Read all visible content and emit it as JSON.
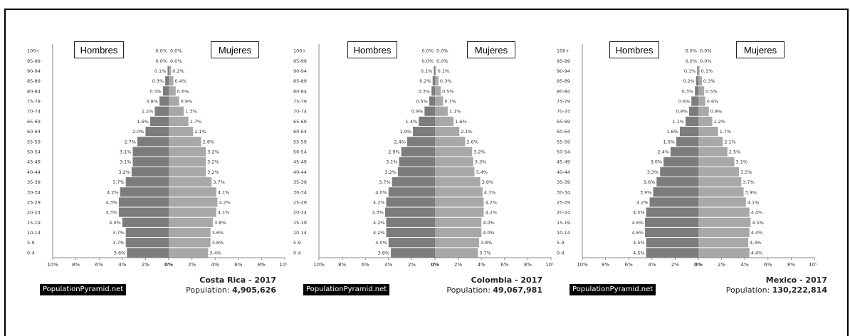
{
  "chart_data": [
    {
      "type": "bar",
      "age_groups": [
        "100+",
        "95-99",
        "90-94",
        "85-89",
        "80-84",
        "75-79",
        "70-74",
        "65-69",
        "60-64",
        "55-59",
        "50-54",
        "45-49",
        "40-44",
        "35-39",
        "30-34",
        "25-29",
        "20-24",
        "15-19",
        "10-14",
        "5-9",
        "0-4"
      ],
      "series": [
        {
          "name": "Hombres",
          "values": [
            0.0,
            0.0,
            0.1,
            0.3,
            0.5,
            0.8,
            1.2,
            1.6,
            2.0,
            2.7,
            3.1,
            3.1,
            3.2,
            3.7,
            4.2,
            4.3,
            4.3,
            4.0,
            3.7,
            3.7,
            3.6
          ]
        },
        {
          "name": "Mujeres",
          "values": [
            0.0,
            0.0,
            0.2,
            0.4,
            0.6,
            0.9,
            1.3,
            1.7,
            2.1,
            2.8,
            3.2,
            3.2,
            3.2,
            3.7,
            4.1,
            4.2,
            4.1,
            3.8,
            3.6,
            3.6,
            3.4
          ]
        }
      ],
      "xticks": [
        "10%",
        "8%",
        "6%",
        "4%",
        "2%",
        "0%",
        "2%",
        "4%",
        "6%",
        "8%",
        "10%"
      ],
      "xlim": [
        -10,
        10
      ],
      "title": "Costa Rica - 2017",
      "population_label": "Population:",
      "population_value": "4,905,626",
      "brand": "PopulationPyramid.net",
      "legend_male": "Hombres",
      "legend_female": "Mujeres"
    },
    {
      "type": "bar",
      "age_groups": [
        "100+",
        "95-99",
        "90-94",
        "85-89",
        "80-84",
        "75-79",
        "70-74",
        "65-69",
        "60-64",
        "55-59",
        "50-54",
        "45-49",
        "40-44",
        "35-39",
        "30-34",
        "25-29",
        "20-24",
        "15-19",
        "10-14",
        "5-9",
        "0-4"
      ],
      "series": [
        {
          "name": "Hombres",
          "values": [
            0.0,
            0.0,
            0.1,
            0.2,
            0.3,
            0.5,
            0.9,
            1.4,
            1.9,
            2.4,
            2.9,
            3.1,
            3.2,
            3.7,
            4.0,
            4.2,
            4.3,
            4.2,
            4.2,
            4.0,
            3.8
          ]
        },
        {
          "name": "Mujeres",
          "values": [
            0.0,
            0.0,
            0.1,
            0.3,
            0.5,
            0.7,
            1.1,
            1.6,
            2.1,
            2.6,
            3.2,
            3.3,
            3.4,
            3.9,
            4.1,
            4.2,
            4.2,
            4.0,
            4.0,
            3.8,
            3.7
          ]
        }
      ],
      "xticks": [
        "10%",
        "8%",
        "6%",
        "4%",
        "2%",
        "0%",
        "2%",
        "4%",
        "6%",
        "8%",
        "10%"
      ],
      "xlim": [
        -10,
        10
      ],
      "title": "Colombia - 2017",
      "population_label": "Population:",
      "population_value": "49,067,981",
      "brand": "PopulationPyramid.net",
      "legend_male": "Hombres",
      "legend_female": "Mujeres"
    },
    {
      "type": "bar",
      "age_groups": [
        "100+",
        "95-99",
        "90-94",
        "85-89",
        "80-84",
        "75-79",
        "70-74",
        "65-69",
        "60-64",
        "55-59",
        "50-54",
        "45-49",
        "40-44",
        "35-39",
        "30-34",
        "25-29",
        "20-24",
        "15-19",
        "10-14",
        "5-9",
        "0-4"
      ],
      "series": [
        {
          "name": "Hombres",
          "values": [
            0.0,
            0.0,
            0.1,
            0.2,
            0.3,
            0.6,
            0.8,
            1.1,
            1.6,
            1.9,
            2.4,
            3.0,
            3.3,
            3.6,
            3.9,
            4.2,
            4.5,
            4.6,
            4.6,
            4.5,
            4.5
          ]
        },
        {
          "name": "Mujeres",
          "values": [
            0.0,
            0.0,
            0.1,
            0.3,
            0.5,
            0.6,
            0.9,
            1.2,
            1.7,
            2.1,
            2.5,
            3.1,
            3.5,
            3.7,
            3.9,
            4.1,
            4.4,
            4.5,
            4.4,
            4.3,
            4.4
          ]
        }
      ],
      "xticks": [
        "10%",
        "8%",
        "6%",
        "4%",
        "2%",
        "0%",
        "2%",
        "4%",
        "6%",
        "8%",
        "10%"
      ],
      "xlim": [
        -10,
        10
      ],
      "title": "Mexico - 2017",
      "population_label": "Population:",
      "population_value": "130,222,814",
      "brand": "PopulationPyramid.net",
      "legend_male": "Hombres",
      "legend_female": "Mujeres"
    }
  ],
  "colors": {
    "male": "#7c7c7c",
    "female": "#a8a8a8",
    "text": "#333333",
    "axis": "#888888"
  }
}
